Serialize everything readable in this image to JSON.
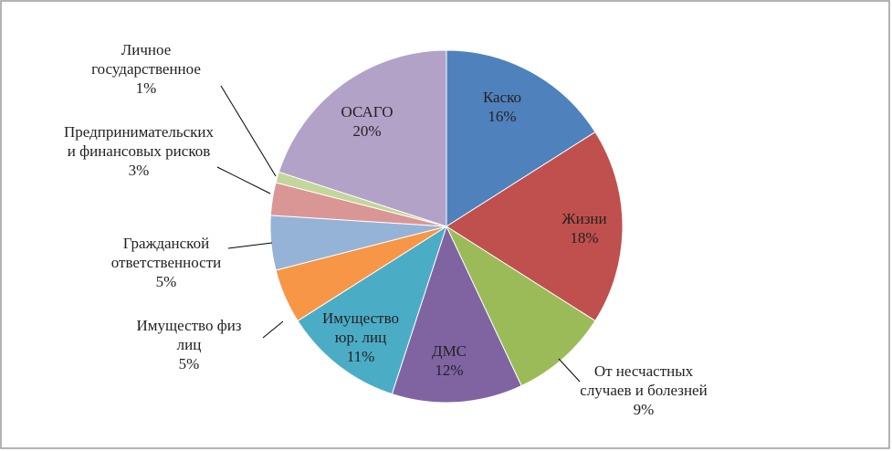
{
  "chart_data": {
    "type": "pie",
    "categories": [
      "Каско",
      "Жизни",
      "От несчастных случаев и болезней",
      "ДМС",
      "Имущество юр. лиц",
      "Имущество физ лиц",
      "Гражданской ответственности",
      "Предпринимательских и финансовых рисков",
      "Личное государственное",
      "ОСАГО"
    ],
    "values": [
      16,
      18,
      9,
      12,
      11,
      5,
      5,
      3,
      1,
      20
    ],
    "value_labels": [
      "16%",
      "18%",
      "9%",
      "12%",
      "11%",
      "5%",
      "5%",
      "3%",
      "1%",
      "20%"
    ],
    "colors": [
      "#4f81bd",
      "#c0504d",
      "#9bbb59",
      "#8064a2",
      "#4bacc6",
      "#f79646",
      "#95b3d7",
      "#da9694",
      "#c3d69b",
      "#b3a2c7"
    ]
  }
}
